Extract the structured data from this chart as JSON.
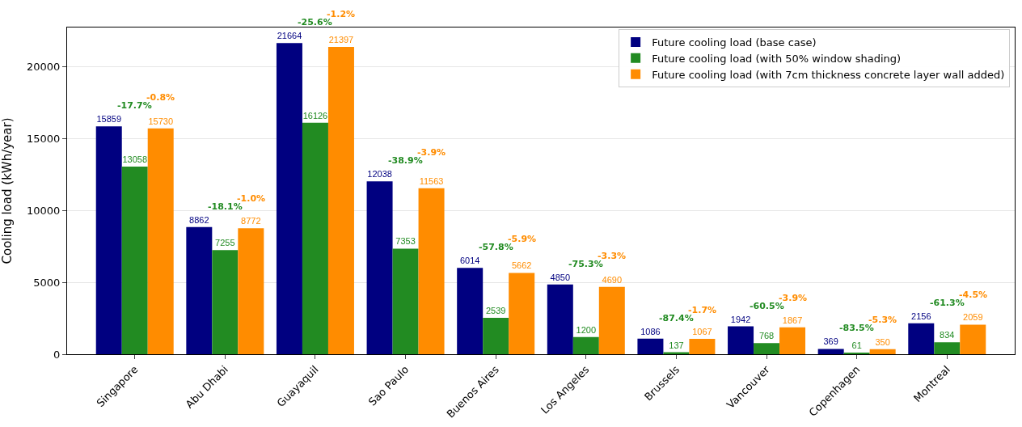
{
  "chart_data": {
    "type": "bar",
    "ylabel": "Cooling load (kWh/year)",
    "categories": [
      "Singapore",
      "Abu Dhabi",
      "Guayaquil",
      "Sao Paulo",
      "Buenos Aires",
      "Los Angeles",
      "Brussels",
      "Vancouver",
      "Copenhagen",
      "Montreal"
    ],
    "series": [
      {
        "name": "Future cooling load (base case)",
        "color": "#000080",
        "values": [
          15859,
          8862,
          21664,
          12038,
          6014,
          4850,
          1086,
          1942,
          369,
          2156
        ]
      },
      {
        "name": "Future cooling load (with 50% window shading)",
        "color": "#228b22",
        "values": [
          13058,
          7255,
          16126,
          7353,
          2539,
          1200,
          137,
          768,
          61,
          834
        ]
      },
      {
        "name": "Future cooling load (with 7cm thickness concrete layer wall added)",
        "color": "#ff8c00",
        "values": [
          15730,
          8772,
          21397,
          11563,
          5662,
          4690,
          1067,
          1867,
          350,
          2059
        ]
      }
    ],
    "ylim": [
      0,
      22750
    ],
    "yticks": [
      0,
      5000,
      10000,
      15000,
      20000
    ],
    "grid": "y",
    "legend": "top right",
    "data_labels": true,
    "annotations": [
      "-17.7%",
      "-0.8%",
      "-18.1%",
      "-1.0%",
      "-25.6%",
      "-1.2%",
      "-38.9%",
      "-3.9%",
      "-57.8%",
      "-5.9%",
      "-75.3%",
      "-3.3%",
      "-87.4%",
      "-1.7%",
      "-60.5%",
      "-3.9%",
      "-83.5%",
      "-5.3%",
      "-61.3%",
      "-4.5%"
    ]
  }
}
